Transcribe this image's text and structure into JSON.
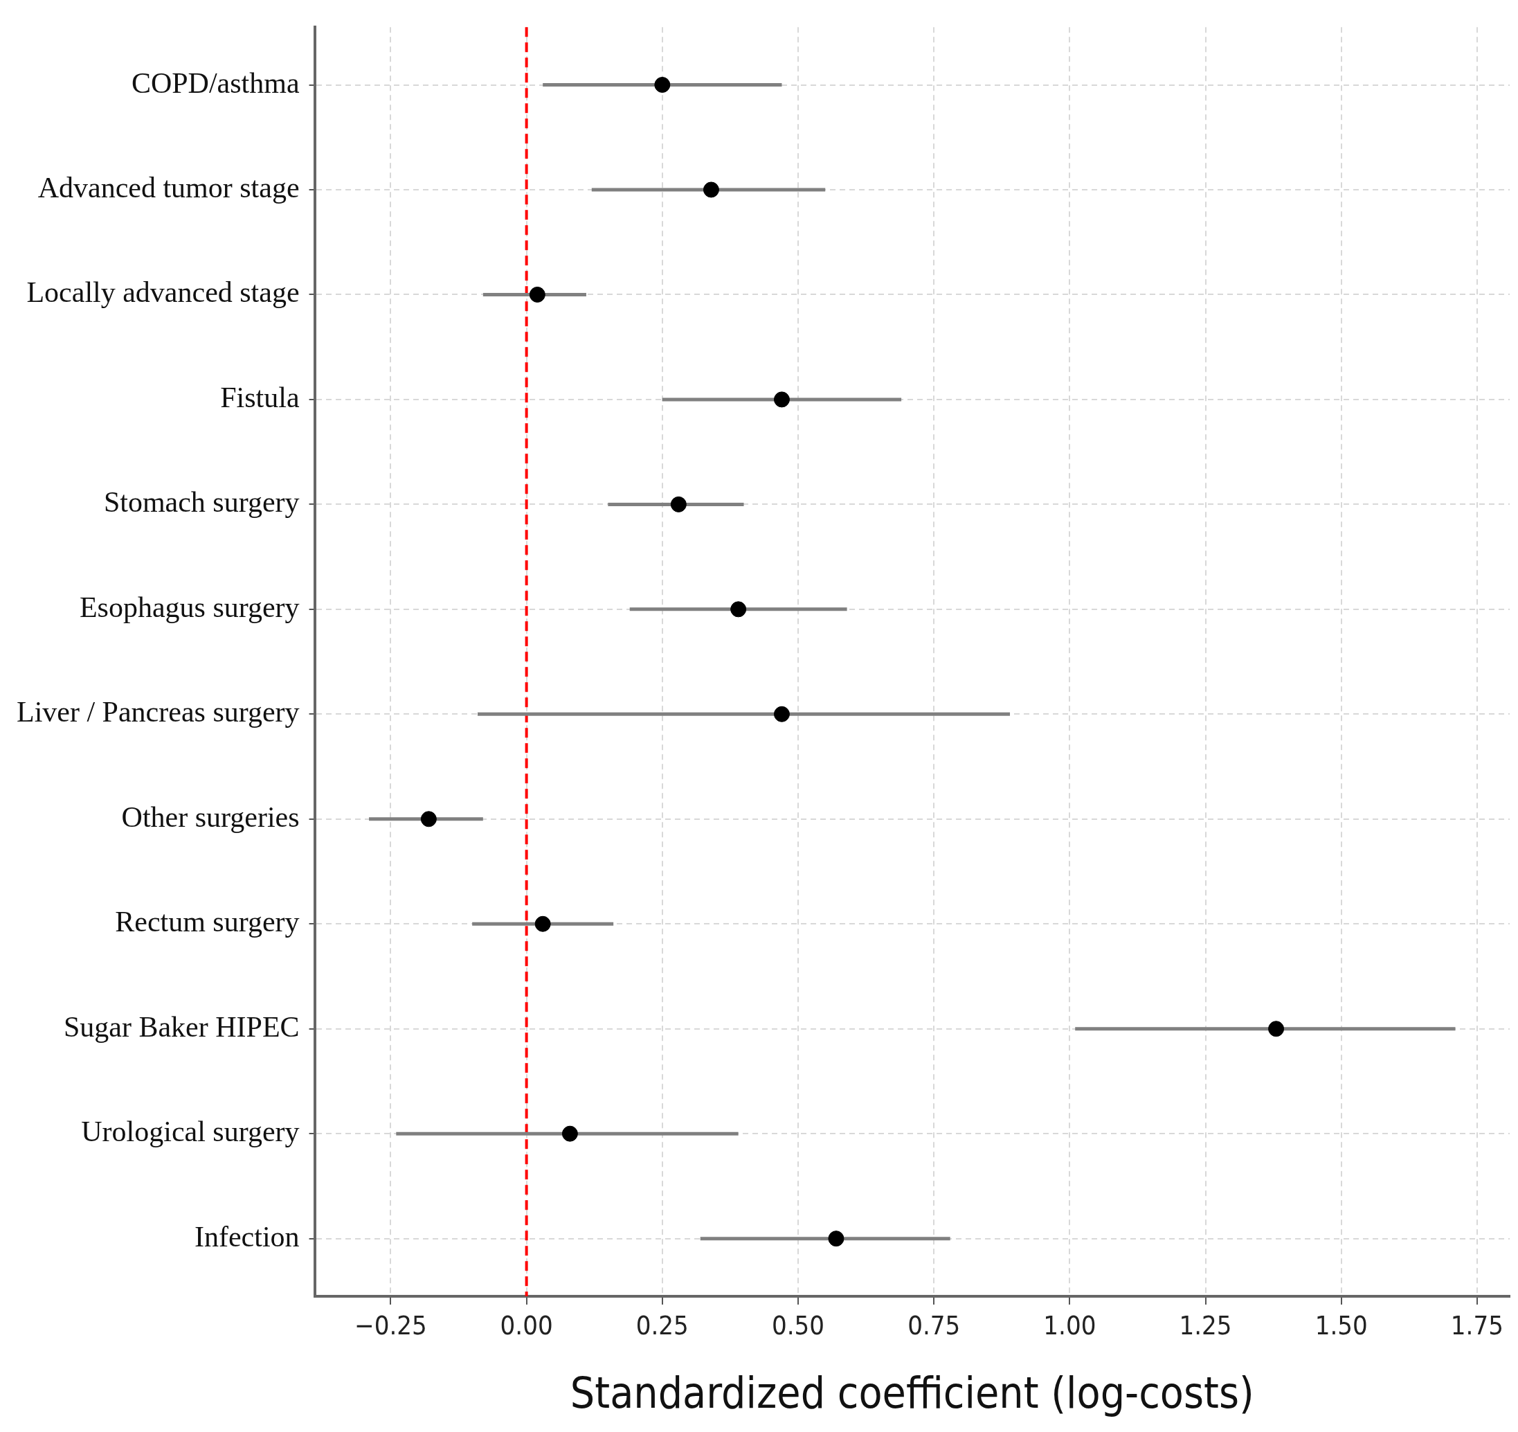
{
  "chart_data": {
    "type": "scatter",
    "orientation": "horizontal",
    "xlabel": "Standardized coefficient (log-costs)",
    "categories": [
      "COPD/asthma",
      "Advanced tumor stage",
      "Locally advanced stage",
      "Fistula",
      "Stomach surgery",
      "Esophagus surgery",
      "Liver / Pancreas surgery",
      "Other surgeries",
      "Rectum surgery",
      "Sugar Baker HIPEC",
      "Urological surgery",
      "Infection"
    ],
    "series": [
      {
        "color": "#000000",
        "values": [
          0.25,
          0.34,
          0.02,
          0.47,
          0.28,
          0.39,
          0.47,
          -0.18,
          0.03,
          1.38,
          0.08,
          0.57
        ],
        "errors": [
          [
            0.03,
            0.47
          ],
          [
            0.12,
            0.55
          ],
          [
            -0.08,
            0.11
          ],
          [
            0.25,
            0.69
          ],
          [
            0.15,
            0.4
          ],
          [
            0.19,
            0.59
          ],
          [
            -0.09,
            0.89
          ],
          [
            -0.29,
            -0.08
          ],
          [
            -0.1,
            0.16
          ],
          [
            1.01,
            1.71
          ],
          [
            -0.24,
            0.39
          ],
          [
            0.32,
            0.78
          ]
        ]
      }
    ],
    "xlim": [
      -0.39,
      1.81
    ],
    "xticks": [
      {
        "value": -0.25,
        "label": "−0.25"
      },
      {
        "value": 0,
        "label": "0.00"
      },
      {
        "value": 0.25,
        "label": "0.25"
      },
      {
        "value": 0.5,
        "label": "0.50"
      },
      {
        "value": 0.75,
        "label": "0.75"
      },
      {
        "value": 1,
        "label": "1.00"
      },
      {
        "value": 1.25,
        "label": "1.25"
      },
      {
        "value": 1.5,
        "label": "1.50"
      },
      {
        "value": 1.75,
        "label": "1.75"
      }
    ],
    "ref_lines": [
      {
        "axis": "x",
        "value": 0,
        "color": "#ff0000",
        "line_style": "dashed"
      }
    ],
    "grid": true,
    "marker": "circle",
    "legend": false
  }
}
